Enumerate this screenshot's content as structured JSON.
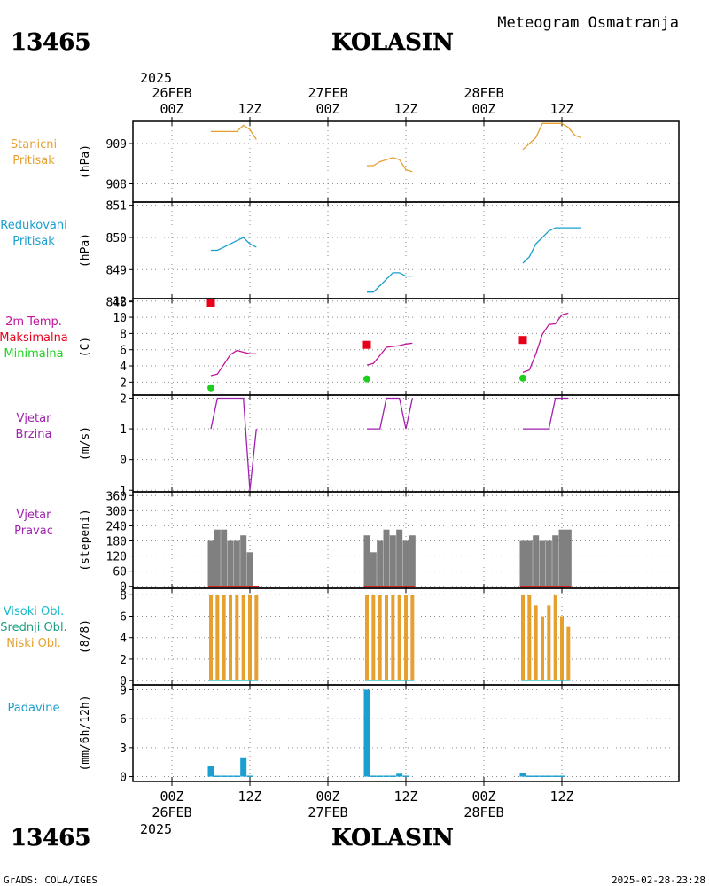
{
  "header": {
    "station_id": "13465",
    "station_name": "KOLASIN",
    "chart_title": "Meteogram Osmatranja",
    "top_year": "2025",
    "bottom_year": "2025"
  },
  "footer": {
    "credit": "GrADS: COLA/IGES",
    "timestamp": "2025-02-28-23:28"
  },
  "axis_time": {
    "day_labels": [
      "26FEB",
      "27FEB",
      "28FEB"
    ],
    "tick_labels": [
      "00Z",
      "12Z",
      "00Z",
      "12Z",
      "00Z",
      "12Z"
    ]
  },
  "panels": [
    {
      "key": "pressure",
      "label_lines": [
        {
          "text": "Stanicni",
          "color": "#e6a030"
        },
        {
          "text": "Pritisak",
          "color": "#e6a030"
        }
      ],
      "unit": "(hPa)",
      "ticks": [
        "909",
        "908"
      ]
    },
    {
      "key": "reduced",
      "label_lines": [
        {
          "text": "Redukovani",
          "color": "#1a9fd0"
        },
        {
          "text": "Pritisak",
          "color": "#1a9fd0"
        }
      ],
      "unit": "(hPa)",
      "ticks": [
        "851",
        "850",
        "849",
        "848"
      ]
    },
    {
      "key": "temp",
      "label_lines": [
        {
          "text": "2m Temp.",
          "color": "#c0149a"
        },
        {
          "text": "Maksimalna",
          "color": "#e8001a"
        },
        {
          "text": "Minimalna",
          "color": "#1fcf1f"
        }
      ],
      "unit": "(C)",
      "ticks": [
        "12",
        "10",
        "8",
        "6",
        "4",
        "2"
      ]
    },
    {
      "key": "wind_speed",
      "label_lines": [
        {
          "text": "Vjetar",
          "color": "#a020b0"
        },
        {
          "text": "Brzina",
          "color": "#a020b0"
        }
      ],
      "unit": "(m/s)",
      "ticks": [
        "2",
        "1",
        "0",
        "-1"
      ]
    },
    {
      "key": "wind_dir",
      "label_lines": [
        {
          "text": "Vjetar",
          "color": "#a020b0"
        },
        {
          "text": "Pravac",
          "color": "#a020b0"
        }
      ],
      "unit": "(stepeni)",
      "ticks": [
        "360",
        "300",
        "240",
        "180",
        "120",
        "60",
        "0"
      ]
    },
    {
      "key": "clouds",
      "label_lines": [
        {
          "text": "Visoki Obl.",
          "color": "#18b8c8"
        },
        {
          "text": "Srednji Obl.",
          "color": "#1a9f80"
        },
        {
          "text": "Niski Obl.",
          "color": "#e6a030"
        }
      ],
      "unit": "(8/8)",
      "ticks": [
        "8",
        "6",
        "4",
        "2",
        "0"
      ]
    },
    {
      "key": "precip",
      "label_lines": [
        {
          "text": "Padavine",
          "color": "#1a9fd0"
        }
      ],
      "unit": "(mm/6h/12h)",
      "ticks": [
        "9",
        "6",
        "3",
        "0"
      ]
    }
  ],
  "chart_data": {
    "type": "line",
    "title": "Meteogram Osmatranja",
    "x_unit": "hours from 26FEB 00Z",
    "x_range": [
      -6,
      78
    ],
    "colors": {
      "pressure": "#e6a030",
      "reduced": "#1a9fd0",
      "temp": "#c0149a",
      "tmax": "#e8001a",
      "tmin": "#1fcf1f",
      "wind_speed": "#a020b0",
      "wind_dir": "#808080",
      "wind_dir_zero": "#cc2222",
      "clouds": "#e6a030",
      "precip": "#1a9fd0"
    },
    "stanicni_pritisak": {
      "ylim": [
        907.55,
        909.55
      ],
      "segments": [
        [
          [
            6,
            909.3
          ],
          [
            7,
            909.3
          ],
          [
            8,
            909.3
          ],
          [
            9,
            909.3
          ],
          [
            10,
            909.3
          ],
          [
            11,
            909.45
          ],
          [
            12,
            909.35
          ],
          [
            13,
            909.1
          ]
        ],
        [
          [
            30,
            908.45
          ],
          [
            31,
            908.45
          ],
          [
            32,
            908.55
          ],
          [
            33,
            908.6
          ],
          [
            34,
            908.65
          ],
          [
            35,
            908.6
          ],
          [
            36,
            908.35
          ],
          [
            37,
            908.3
          ]
        ],
        [
          [
            54,
            908.85
          ],
          [
            55,
            909.0
          ],
          [
            56,
            909.15
          ],
          [
            57,
            909.5
          ],
          [
            58,
            909.5
          ],
          [
            59,
            909.5
          ],
          [
            60,
            909.5
          ],
          [
            61,
            909.4
          ],
          [
            62,
            909.2
          ],
          [
            63,
            909.15
          ]
        ]
      ]
    },
    "redukovani_pritisak": {
      "ylim": [
        848.1,
        851.1
      ],
      "segments": [
        [
          [
            6,
            849.6
          ],
          [
            7,
            849.6
          ],
          [
            8,
            849.7
          ],
          [
            9,
            849.8
          ],
          [
            10,
            849.9
          ],
          [
            11,
            850.0
          ],
          [
            12,
            849.8
          ],
          [
            13,
            849.7
          ]
        ],
        [
          [
            30,
            848.3
          ],
          [
            31,
            848.3
          ],
          [
            32,
            848.5
          ],
          [
            33,
            848.7
          ],
          [
            34,
            848.9
          ],
          [
            35,
            848.9
          ],
          [
            36,
            848.8
          ],
          [
            37,
            848.8
          ]
        ],
        [
          [
            54,
            849.2
          ],
          [
            55,
            849.4
          ],
          [
            56,
            849.8
          ],
          [
            57,
            850.0
          ],
          [
            58,
            850.2
          ],
          [
            59,
            850.3
          ],
          [
            60,
            850.3
          ],
          [
            61,
            850.3
          ],
          [
            62,
            850.3
          ],
          [
            63,
            850.3
          ]
        ]
      ]
    },
    "temperatura_2m": {
      "ylim": [
        0.4,
        12.3
      ],
      "segments": [
        [
          [
            6,
            2.8
          ],
          [
            7,
            3.0
          ],
          [
            8,
            4.2
          ],
          [
            9,
            5.4
          ],
          [
            10,
            5.9
          ],
          [
            11,
            5.7
          ],
          [
            12,
            5.5
          ],
          [
            13,
            5.5
          ]
        ],
        [
          [
            30,
            4.1
          ],
          [
            31,
            4.3
          ],
          [
            32,
            5.3
          ],
          [
            33,
            6.3
          ],
          [
            34,
            6.4
          ],
          [
            35,
            6.5
          ],
          [
            36,
            6.7
          ],
          [
            37,
            6.8
          ]
        ],
        [
          [
            54,
            3.2
          ],
          [
            55,
            3.5
          ],
          [
            56,
            5.5
          ],
          [
            57,
            7.9
          ],
          [
            58,
            9.1
          ],
          [
            59,
            9.2
          ],
          [
            60,
            10.3
          ],
          [
            61,
            10.5
          ]
        ]
      ],
      "max_points": [
        [
          6,
          11.8
        ],
        [
          30,
          6.6
        ],
        [
          54,
          7.2
        ]
      ],
      "min_points": [
        [
          6,
          1.3
        ],
        [
          30,
          2.4
        ],
        [
          54,
          2.5
        ]
      ]
    },
    "vjetar_brzina": {
      "ylim": [
        -1.05,
        2.1
      ],
      "segments": [
        [
          [
            6,
            1
          ],
          [
            7,
            2
          ],
          [
            8,
            2
          ],
          [
            9,
            2
          ],
          [
            10,
            2
          ],
          [
            11,
            2
          ],
          [
            12,
            -1
          ],
          [
            13,
            1
          ]
        ],
        [
          [
            30,
            1
          ],
          [
            31,
            1
          ],
          [
            32,
            1
          ],
          [
            33,
            2
          ],
          [
            34,
            2
          ],
          [
            35,
            2
          ],
          [
            36,
            1
          ],
          [
            37,
            2
          ]
        ],
        [
          [
            54,
            1
          ],
          [
            55,
            1
          ],
          [
            56,
            1
          ],
          [
            57,
            1
          ],
          [
            58,
            1
          ],
          [
            59,
            2
          ],
          [
            60,
            2
          ],
          [
            61,
            2
          ]
        ]
      ]
    },
    "vjetar_pravac": {
      "type": "bar",
      "ylim": [
        -8,
        375
      ],
      "x": [
        6,
        7,
        8,
        9,
        10,
        11,
        12,
        13,
        30,
        31,
        32,
        33,
        34,
        35,
        36,
        37,
        54,
        55,
        56,
        57,
        58,
        59,
        60,
        61
      ],
      "values": [
        180,
        225,
        225,
        180,
        180,
        202,
        135,
        0,
        202,
        135,
        180,
        225,
        202,
        225,
        180,
        202,
        180,
        180,
        202,
        180,
        180,
        202,
        225,
        225
      ]
    },
    "oblacnost": {
      "type": "bar",
      "ylim": [
        -0.4,
        8.6
      ],
      "x": [
        6,
        7,
        8,
        9,
        10,
        11,
        12,
        13,
        30,
        31,
        32,
        33,
        34,
        35,
        36,
        37,
        54,
        55,
        56,
        57,
        58,
        59,
        60,
        61
      ],
      "values": [
        8,
        8,
        8,
        8,
        8,
        8,
        8,
        8,
        8,
        8,
        8,
        8,
        8,
        8,
        8,
        8,
        8,
        8,
        7,
        6,
        7,
        8,
        6,
        5
      ]
    },
    "padavine": {
      "type": "bar",
      "ylim": [
        -0.5,
        9.5
      ],
      "x": [
        6,
        7,
        8,
        9,
        10,
        11,
        12,
        13,
        30,
        31,
        32,
        33,
        34,
        35,
        36,
        37,
        54,
        55,
        56,
        57,
        58,
        59,
        60,
        61
      ],
      "values": [
        1.1,
        0.1,
        0.1,
        0.1,
        0.1,
        2.0,
        0.1,
        0,
        9.0,
        0.1,
        0.1,
        0.1,
        0.1,
        0.3,
        0.1,
        0,
        0.4,
        0.1,
        0.1,
        0.1,
        0.1,
        0.1,
        0.1,
        0
      ]
    }
  }
}
